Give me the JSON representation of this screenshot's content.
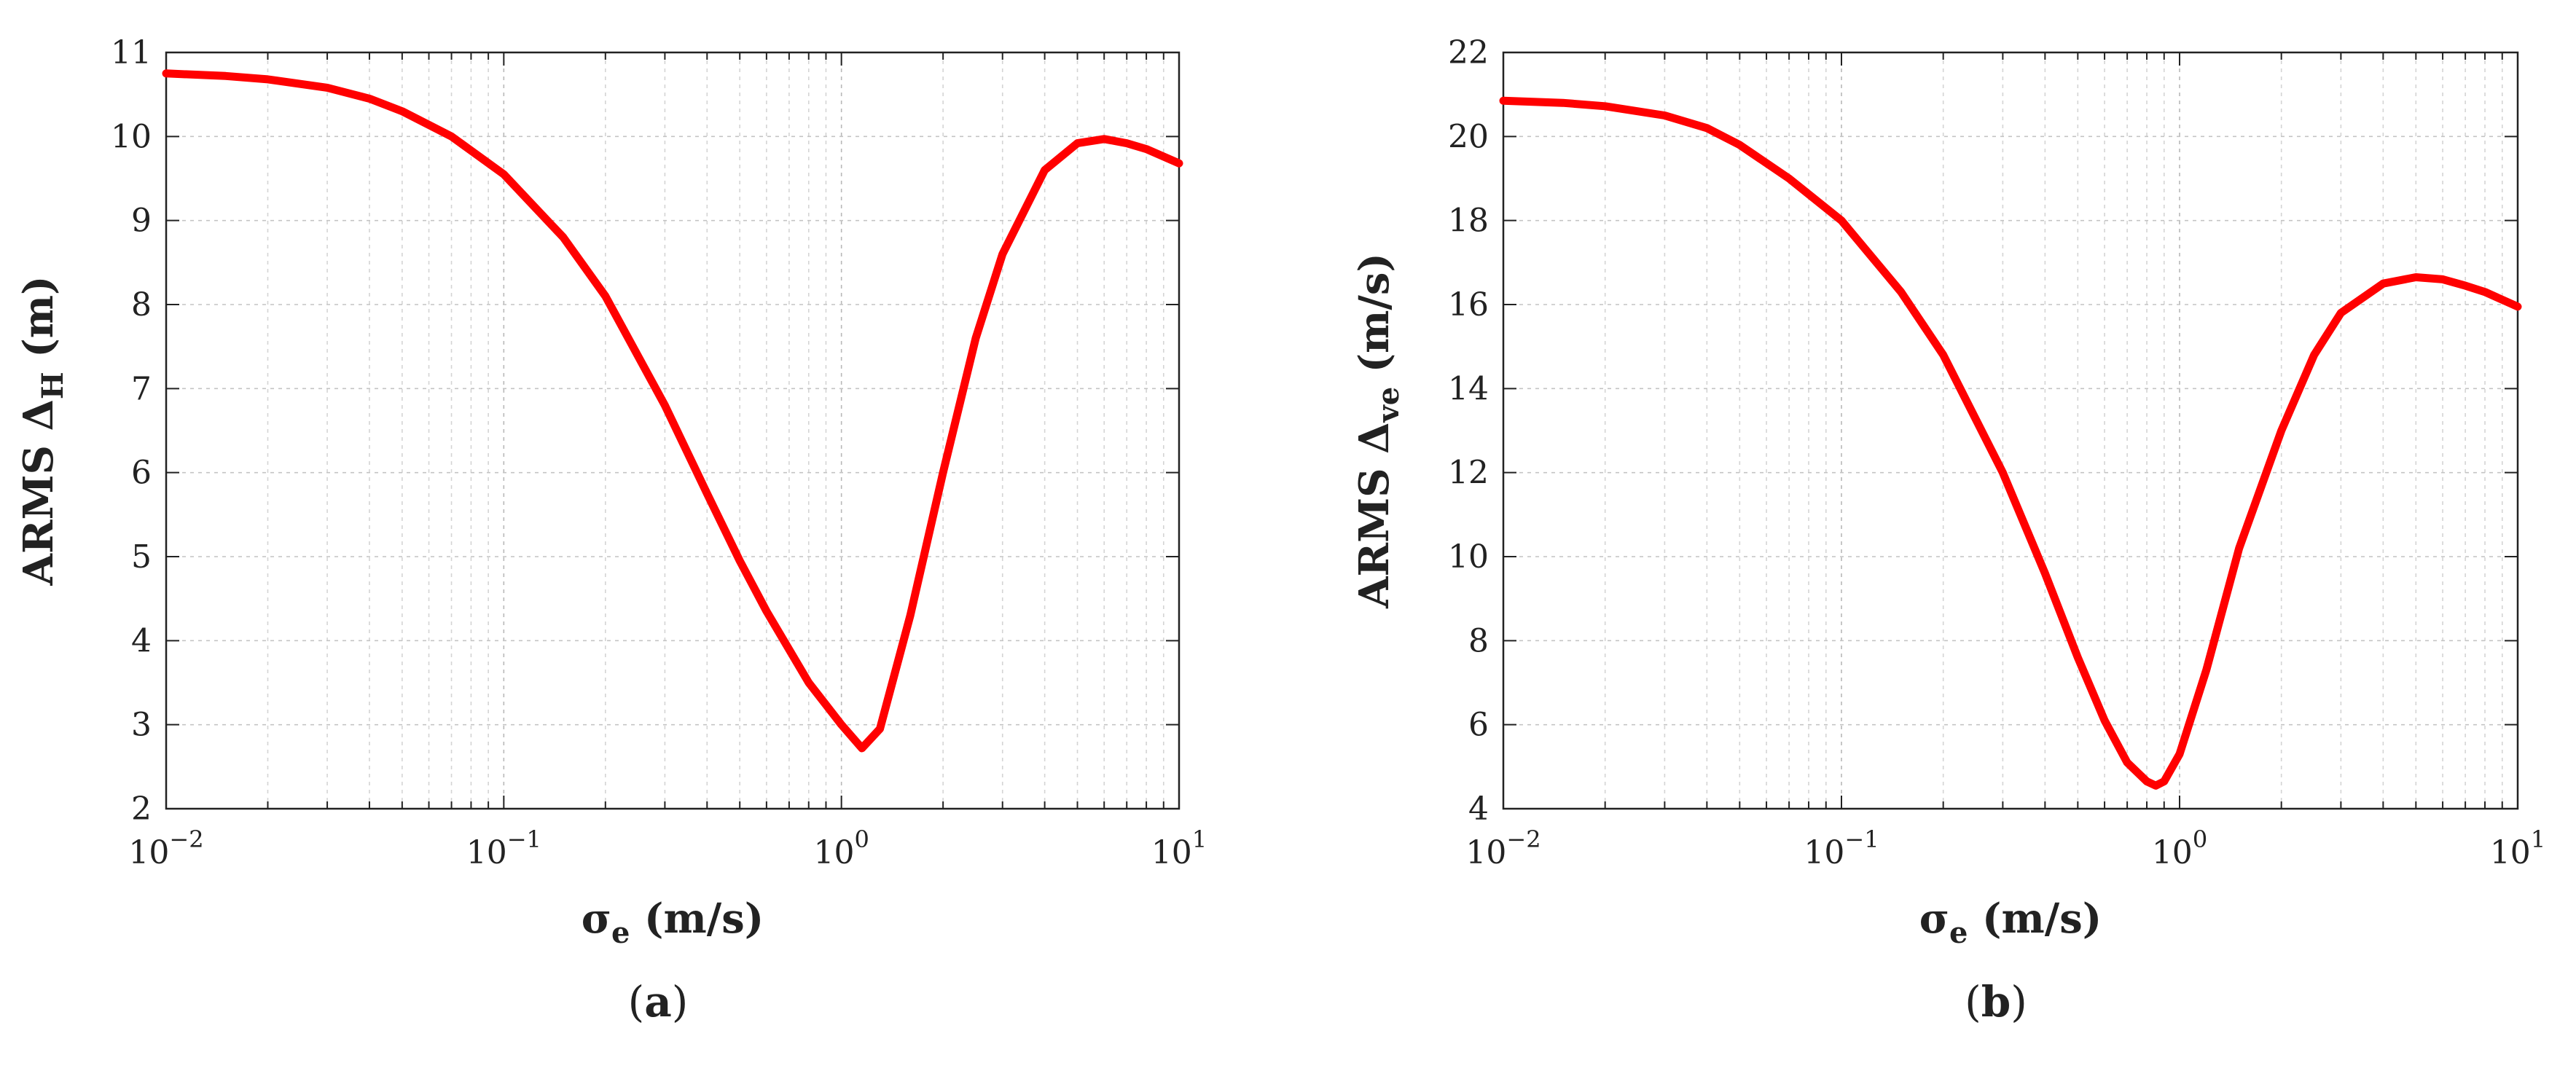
{
  "chart_data": [
    {
      "type": "line",
      "panel_label": {
        "open": "(",
        "letter": "a",
        "close": ")"
      },
      "xscale": "log",
      "xlim": [
        0.01,
        10
      ],
      "ylim": [
        2,
        11
      ],
      "xticks": [
        0.01,
        0.1,
        1,
        10
      ],
      "xtick_labels": [
        {
          "base": "10",
          "exp": "−2"
        },
        {
          "base": "10",
          "exp": "−1"
        },
        {
          "base": "10",
          "exp": "0"
        },
        {
          "base": "10",
          "exp": "1"
        }
      ],
      "yticks": [
        2,
        3,
        4,
        5,
        6,
        7,
        8,
        9,
        10,
        11
      ],
      "xlabel": {
        "main": "σ",
        "sub": "e",
        "rest": " (m/s)"
      },
      "ylabel": {
        "main": "ARMS Δ",
        "sub": "H",
        "rest": " (m)"
      },
      "grid": true,
      "line_color": "#ff0000",
      "series": [
        {
          "x": [
            0.01,
            0.015,
            0.02,
            0.03,
            0.04,
            0.05,
            0.07,
            0.1,
            0.15,
            0.2,
            0.3,
            0.4,
            0.5,
            0.6,
            0.8,
            1.0,
            1.15,
            1.3,
            1.6,
            2.0,
            2.5,
            3.0,
            4.0,
            5.0,
            6.0,
            7.0,
            8.0,
            10.0
          ],
          "y": [
            10.75,
            10.72,
            10.68,
            10.58,
            10.45,
            10.3,
            10.0,
            9.55,
            8.8,
            8.1,
            6.8,
            5.75,
            4.95,
            4.35,
            3.5,
            3.0,
            2.72,
            2.95,
            4.3,
            6.0,
            7.6,
            8.6,
            9.6,
            9.92,
            9.97,
            9.92,
            9.85,
            9.68
          ]
        }
      ]
    },
    {
      "type": "line",
      "panel_label": {
        "open": "(",
        "letter": "b",
        "close": ")"
      },
      "xscale": "log",
      "xlim": [
        0.01,
        10
      ],
      "ylim": [
        4,
        22
      ],
      "xticks": [
        0.01,
        0.1,
        1,
        10
      ],
      "xtick_labels": [
        {
          "base": "10",
          "exp": "−2"
        },
        {
          "base": "10",
          "exp": "−1"
        },
        {
          "base": "10",
          "exp": "0"
        },
        {
          "base": "10",
          "exp": "1"
        }
      ],
      "yticks": [
        4,
        6,
        8,
        10,
        12,
        14,
        16,
        18,
        20,
        22
      ],
      "xlabel": {
        "main": "σ",
        "sub": "e",
        "rest": " (m/s)"
      },
      "ylabel": {
        "main": "ARMS Δ",
        "sub": "ve",
        "rest": " (m/s)"
      },
      "grid": true,
      "line_color": "#ff0000",
      "series": [
        {
          "x": [
            0.01,
            0.015,
            0.02,
            0.03,
            0.04,
            0.05,
            0.07,
            0.1,
            0.15,
            0.2,
            0.3,
            0.4,
            0.5,
            0.6,
            0.7,
            0.8,
            0.85,
            0.9,
            1.0,
            1.2,
            1.5,
            2.0,
            2.5,
            3.0,
            4.0,
            5.0,
            6.0,
            7.0,
            8.0,
            10.0
          ],
          "y": [
            20.85,
            20.8,
            20.72,
            20.5,
            20.2,
            19.8,
            19.0,
            18.0,
            16.3,
            14.8,
            12.0,
            9.6,
            7.6,
            6.1,
            5.1,
            4.65,
            4.55,
            4.65,
            5.3,
            7.3,
            10.2,
            13.0,
            14.8,
            15.8,
            16.5,
            16.65,
            16.6,
            16.45,
            16.3,
            15.95
          ]
        }
      ]
    }
  ]
}
